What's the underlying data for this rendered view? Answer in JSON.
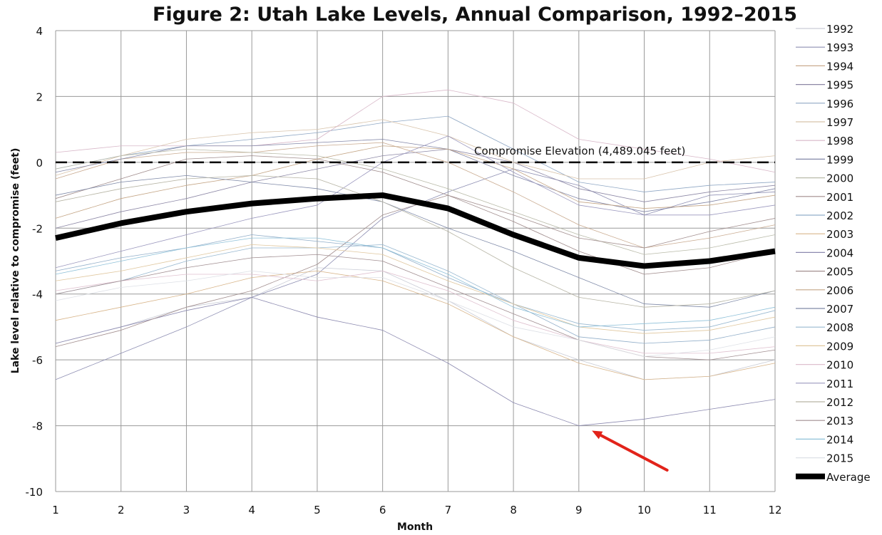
{
  "chart_data": {
    "type": "line",
    "title": "Figure 2: Utah Lake Levels, Annual Comparison, 1992–2015",
    "xlabel": "Month",
    "ylabel": "Lake level relative to compromise (feet)",
    "x": [
      1,
      2,
      3,
      4,
      5,
      6,
      7,
      8,
      9,
      10,
      11,
      12
    ],
    "xlim": [
      1,
      12
    ],
    "ylim": [
      -10,
      4
    ],
    "yticks": [
      4,
      2,
      0,
      -2,
      -4,
      -6,
      -8,
      -10
    ],
    "grid": true,
    "legend_position": "right",
    "annotation": {
      "text": "Compromise Elevation (4,489.045 feet)",
      "y": 0,
      "x": 7.4
    },
    "arrow": {
      "from": [
        10.35,
        -9.35
      ],
      "to": [
        9.2,
        -8.15
      ],
      "color": "#e2231a"
    },
    "series": [
      {
        "name": "1992",
        "color": "#c9ccd6",
        "width": 0.8,
        "values": [
          -5.5,
          -5.0,
          -4.4,
          -4.1,
          -3.2,
          -3.3,
          -4.2,
          -5.3,
          -6.0,
          -6.6,
          -6.5,
          -6.0
        ]
      },
      {
        "name": "1993",
        "color": "#8e8fb3",
        "width": 0.8,
        "values": [
          -6.6,
          -5.8,
          -5.0,
          -4.1,
          -3.4,
          -1.7,
          -0.9,
          -0.2,
          -0.7,
          -1.6,
          -1.0,
          -0.9
        ]
      },
      {
        "name": "1994",
        "color": "#c9aa8f",
        "width": 0.8,
        "values": [
          -0.5,
          0.1,
          0.3,
          0.3,
          0.5,
          0.6,
          0.0,
          -0.9,
          -1.9,
          -2.6,
          -2.3,
          -1.9
        ]
      },
      {
        "name": "1995",
        "color": "#8d88a6",
        "width": 0.8,
        "values": [
          -2.0,
          -1.5,
          -1.1,
          -0.6,
          -0.2,
          0.2,
          0.4,
          0.0,
          -0.8,
          -1.2,
          -0.9,
          -0.7
        ]
      },
      {
        "name": "1996",
        "color": "#8fa7c4",
        "width": 0.8,
        "values": [
          -0.2,
          0.2,
          0.5,
          0.7,
          0.9,
          1.2,
          1.4,
          0.4,
          -0.6,
          -0.9,
          -0.7,
          -0.6
        ]
      },
      {
        "name": "1997",
        "color": "#d8c3aa",
        "width": 0.8,
        "values": [
          -0.4,
          0.2,
          0.7,
          0.9,
          1.0,
          1.3,
          0.8,
          0.0,
          -0.5,
          -0.5,
          0.0,
          0.2
        ]
      },
      {
        "name": "1998",
        "color": "#d8b7c8",
        "width": 0.8,
        "values": [
          0.3,
          0.5,
          0.5,
          0.5,
          0.7,
          2.0,
          2.2,
          1.8,
          0.7,
          0.4,
          0.1,
          -0.3
        ]
      },
      {
        "name": "1999",
        "color": "#8387a8",
        "width": 0.8,
        "values": [
          -0.3,
          0.1,
          0.5,
          0.5,
          0.6,
          0.7,
          0.4,
          -0.4,
          -1.1,
          -1.5,
          -1.2,
          -0.8
        ]
      },
      {
        "name": "2000",
        "color": "#b9bba9",
        "width": 0.8,
        "values": [
          -0.2,
          0.2,
          0.4,
          0.3,
          0.2,
          -0.2,
          -0.8,
          -1.5,
          -2.2,
          -2.8,
          -2.6,
          -2.2
        ]
      },
      {
        "name": "2001",
        "color": "#a08c8c",
        "width": 0.8,
        "values": [
          -1.1,
          -0.5,
          0.1,
          0.2,
          0.1,
          -0.3,
          -1.0,
          -1.8,
          -2.7,
          -3.4,
          -3.2,
          -2.7
        ]
      },
      {
        "name": "2002",
        "color": "#91aec9",
        "width": 0.8,
        "values": [
          -3.3,
          -2.9,
          -2.6,
          -2.2,
          -2.4,
          -2.6,
          -3.5,
          -4.3,
          -5.3,
          -5.5,
          -5.4,
          -5.0
        ]
      },
      {
        "name": "2003",
        "color": "#d8b58a",
        "width": 0.8,
        "values": [
          -4.8,
          -4.4,
          -4.0,
          -3.5,
          -3.3,
          -3.6,
          -4.3,
          -5.3,
          -6.1,
          -6.6,
          -6.5,
          -6.1
        ]
      },
      {
        "name": "2004",
        "color": "#8c8ab0",
        "width": 0.8,
        "values": [
          -5.5,
          -5.0,
          -4.5,
          -4.1,
          -4.7,
          -5.1,
          -6.1,
          -7.3,
          -8.0,
          -7.8,
          -7.5,
          -7.2
        ]
      },
      {
        "name": "2005",
        "color": "#a38f8f",
        "width": 0.8,
        "values": [
          -5.6,
          -5.1,
          -4.4,
          -3.9,
          -3.1,
          -1.6,
          -1.0,
          -1.6,
          -2.3,
          -2.6,
          -2.1,
          -1.7
        ]
      },
      {
        "name": "2006",
        "color": "#c4a585",
        "width": 0.8,
        "values": [
          -1.7,
          -1.1,
          -0.7,
          -0.4,
          0.1,
          0.5,
          0.4,
          -0.2,
          -1.2,
          -1.4,
          -1.3,
          -1.0
        ]
      },
      {
        "name": "2007",
        "color": "#7f8aa8",
        "width": 0.8,
        "values": [
          -1.0,
          -0.6,
          -0.4,
          -0.6,
          -0.8,
          -1.2,
          -2.0,
          -2.7,
          -3.5,
          -4.3,
          -4.4,
          -3.9
        ]
      },
      {
        "name": "2008",
        "color": "#98b8d0",
        "width": 0.8,
        "values": [
          -4.0,
          -3.6,
          -3.0,
          -2.6,
          -2.6,
          -2.5,
          -3.3,
          -4.3,
          -4.9,
          -5.1,
          -5.0,
          -4.5
        ]
      },
      {
        "name": "2009",
        "color": "#e0c79e",
        "width": 0.8,
        "values": [
          -3.6,
          -3.3,
          -2.9,
          -2.5,
          -2.6,
          -2.8,
          -3.6,
          -4.3,
          -5.0,
          -5.2,
          -5.1,
          -4.7
        ]
      },
      {
        "name": "2010",
        "color": "#dfc0cf",
        "width": 0.8,
        "values": [
          -3.9,
          -3.6,
          -3.4,
          -3.4,
          -3.6,
          -3.3,
          -3.9,
          -4.8,
          -5.4,
          -5.8,
          -5.8,
          -5.6
        ]
      },
      {
        "name": "2011",
        "color": "#9b98be",
        "width": 0.8,
        "values": [
          -3.2,
          -2.7,
          -2.2,
          -1.7,
          -1.3,
          0.0,
          0.8,
          -0.3,
          -1.3,
          -1.6,
          -1.6,
          -1.3
        ]
      },
      {
        "name": "2012",
        "color": "#b6b4a4",
        "width": 0.8,
        "values": [
          -1.2,
          -0.8,
          -0.5,
          -0.4,
          -0.5,
          -1.2,
          -2.1,
          -3.2,
          -4.1,
          -4.4,
          -4.3,
          -3.9
        ]
      },
      {
        "name": "2013",
        "color": "#a18e91",
        "width": 0.8,
        "values": [
          -4.0,
          -3.6,
          -3.2,
          -2.9,
          -2.8,
          -3.0,
          -3.8,
          -4.6,
          -5.4,
          -5.9,
          -6.0,
          -5.7
        ]
      },
      {
        "name": "2014",
        "color": "#8fc1d9",
        "width": 0.8,
        "values": [
          -3.4,
          -3.0,
          -2.6,
          -2.3,
          -2.3,
          -2.6,
          -3.4,
          -4.4,
          -5.0,
          -4.9,
          -4.8,
          -4.4
        ]
      },
      {
        "name": "2015",
        "color": "#dde0e6",
        "width": 0.8,
        "values": [
          -4.2,
          -3.8,
          -3.6,
          -3.3,
          -3.5,
          -3.5,
          -4.2,
          -5.0,
          -5.4,
          -5.9,
          -5.7,
          -5.3
        ]
      },
      {
        "name": "Average",
        "color": "#000000",
        "width": 8,
        "values": [
          -2.3,
          -1.85,
          -1.5,
          -1.25,
          -1.1,
          -1.0,
          -1.4,
          -2.2,
          -2.9,
          -3.15,
          -3.0,
          -2.7
        ]
      }
    ]
  }
}
